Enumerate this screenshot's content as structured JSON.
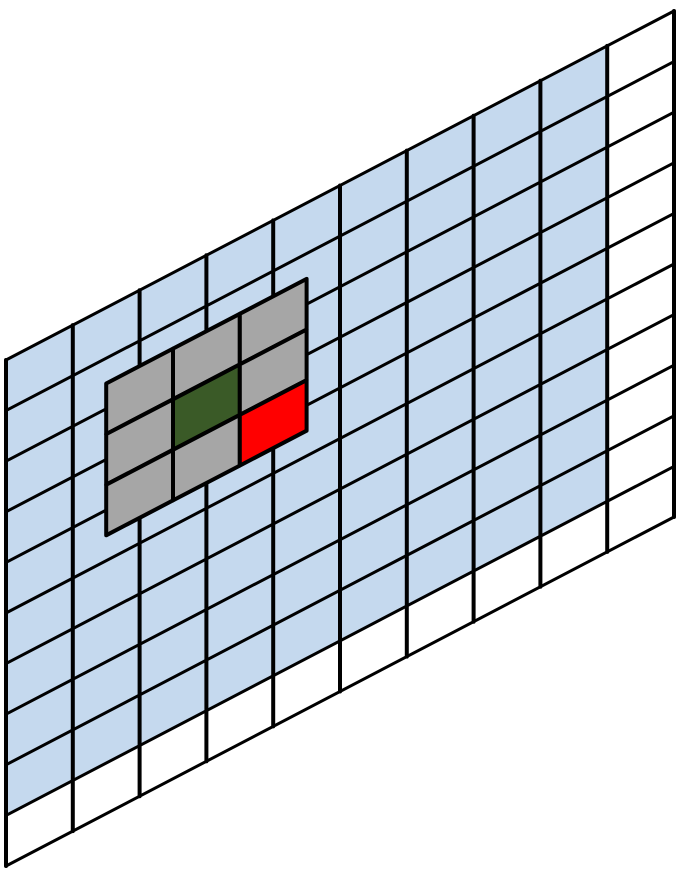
{
  "diagram": {
    "grid": {
      "columns": 10,
      "rows": 10,
      "shaded_columns": 9,
      "shaded_rows": 9
    },
    "kernel": {
      "columns": 3,
      "rows": 3,
      "column_offset": 1.5,
      "row_offset": 1.5,
      "center_cell": [
        1,
        1
      ],
      "highlight_cell": [
        2,
        2
      ]
    },
    "colors": {
      "background": "#ffffff",
      "shaded_cell": "#c5d9ee",
      "empty_cell": "#ffffff",
      "grid_line": "#000000",
      "kernel_cell": "#a6a6a6",
      "kernel_center": "#3a5a27",
      "kernel_highlight": "#ff0000"
    }
  }
}
